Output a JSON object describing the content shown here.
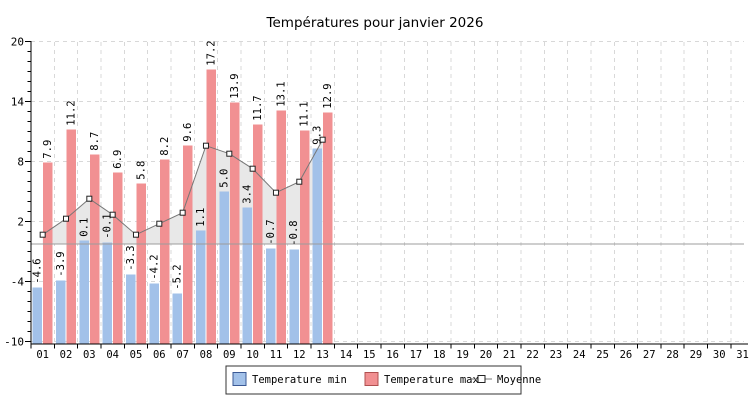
{
  "title": "Températures pour janvier 2026",
  "colors": {
    "title": "#3c4a66",
    "temp_min_fill": "#a2c1e9",
    "temp_max_fill": "#f19092",
    "moyenne_line": "#777777",
    "moyenne_area": "#e8e8e8",
    "marker_fill": "#ffffff",
    "marker_border": "#222222",
    "zero_line": "#9c9c9c",
    "grid": "#d8d8d8",
    "axis": "#000000"
  },
  "legend": {
    "items": [
      {
        "label": "Temperature min",
        "type": "bar"
      },
      {
        "label": "Temperature max",
        "type": "bar"
      },
      {
        "label": "Moyenne",
        "type": "line-marker"
      }
    ]
  },
  "chart_data": {
    "type": "bar",
    "title": "Températures pour janvier 2026",
    "xlabel": "",
    "ylabel": "",
    "ylim": [
      -10,
      20
    ],
    "yticks": [
      20,
      14,
      8,
      2,
      -4,
      -10
    ],
    "y_minor_step": 1,
    "grid": "dashed",
    "legend_position": "bottom-center",
    "zero_line": true,
    "categories": [
      "01",
      "02",
      "03",
      "04",
      "05",
      "06",
      "07",
      "08",
      "09",
      "10",
      "11",
      "12",
      "13",
      "14",
      "15",
      "16",
      "17",
      "18",
      "19",
      "20",
      "21",
      "22",
      "23",
      "24",
      "25",
      "26",
      "27",
      "28",
      "29",
      "30",
      "31"
    ],
    "series": [
      {
        "name": "Temperature min",
        "type": "bar",
        "values": [
          -4.6,
          -3.9,
          0.1,
          -0.1,
          -3.3,
          -4.2,
          -5.2,
          1.1,
          5.0,
          3.4,
          -0.7,
          -0.8,
          9.3,
          null,
          null,
          null,
          null,
          null,
          null,
          null,
          null,
          null,
          null,
          null,
          null,
          null,
          null,
          null,
          null,
          null,
          null
        ]
      },
      {
        "name": "Temperature max",
        "type": "bar",
        "values": [
          7.9,
          11.2,
          8.7,
          6.9,
          5.8,
          8.2,
          9.6,
          17.2,
          13.9,
          11.7,
          13.1,
          11.1,
          12.9,
          null,
          null,
          null,
          null,
          null,
          null,
          null,
          null,
          null,
          null,
          null,
          null,
          null,
          null,
          null,
          null,
          null,
          null
        ]
      },
      {
        "name": "Moyenne",
        "type": "line-area",
        "values": [
          0.7,
          2.3,
          4.3,
          2.7,
          0.7,
          1.8,
          2.9,
          9.6,
          8.8,
          7.3,
          4.9,
          6.0,
          10.2,
          null,
          null,
          null,
          null,
          null,
          null,
          null,
          null,
          null,
          null,
          null,
          null,
          null,
          null,
          null,
          null,
          null,
          null
        ]
      }
    ]
  }
}
